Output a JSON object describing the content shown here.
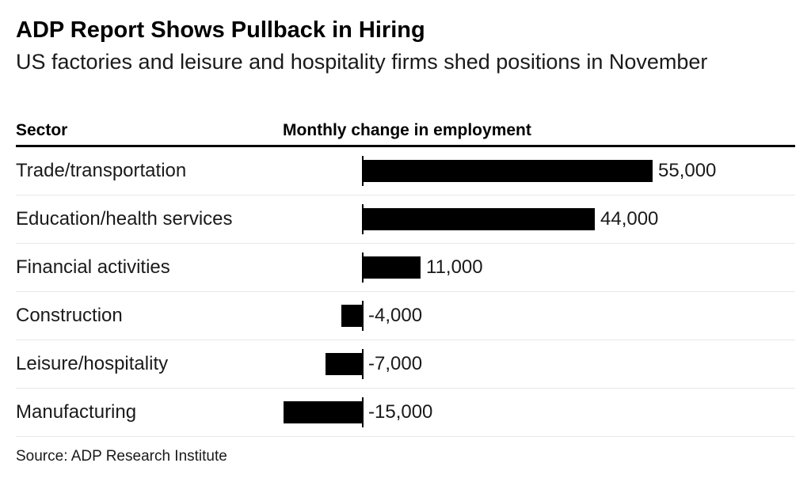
{
  "page": {
    "title": "ADP Report Shows Pullback in Hiring",
    "subtitle": "US factories and leisure and hospitality firms shed positions in November",
    "source": "Source: ADP Research Institute"
  },
  "table_header": {
    "sector_label": "Sector",
    "value_label": "Monthly change in employment"
  },
  "chart_data": {
    "type": "bar",
    "orientation": "horizontal",
    "title": "ADP Report Shows Pullback in Hiring",
    "subtitle": "US factories and leisure and hospitality firms shed positions in November",
    "xlabel": "Monthly change in employment",
    "ylabel": "Sector",
    "categories": [
      "Trade/transportation",
      "Education/health services",
      "Financial activities",
      "Construction",
      "Leisure/hospitality",
      "Manufacturing"
    ],
    "values": [
      55000,
      44000,
      11000,
      -4000,
      -7000,
      -15000
    ],
    "value_labels": [
      "55,000",
      "44,000",
      "11,000",
      "-4,000",
      "-7,000",
      "-15,000"
    ],
    "xlim": [
      -15000,
      55000
    ],
    "grid": false,
    "legend": false,
    "source": "Source: ADP Research Institute"
  },
  "colors": {
    "bar": "#000000",
    "title_text": "#000000",
    "body_text": "#1a1a1a",
    "header_rule": "#000000",
    "row_separator": "#e8e8e8",
    "background": "#ffffff"
  }
}
